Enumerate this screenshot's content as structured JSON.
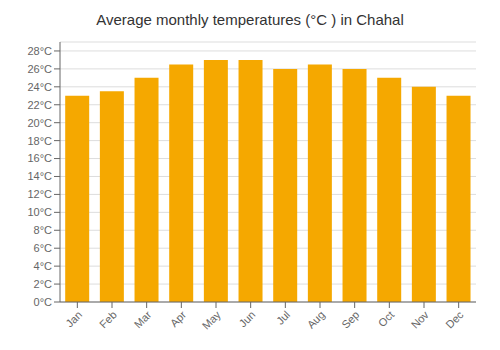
{
  "chart_data": {
    "type": "bar",
    "title": "Average monthly temperatures (°C ) in Chahal",
    "categories": [
      "Jan",
      "Feb",
      "Mar",
      "Apr",
      "May",
      "Jun",
      "Jul",
      "Aug",
      "Sep",
      "Oct",
      "Nov",
      "Dec"
    ],
    "values": [
      23,
      23.5,
      25,
      26.5,
      27,
      27,
      26,
      26.5,
      26,
      25,
      24,
      23
    ],
    "color": "#F5A800",
    "ylim": [
      0,
      29
    ],
    "yticks": [
      {
        "value": 0,
        "label": "0°C"
      },
      {
        "value": 2,
        "label": "2°C"
      },
      {
        "value": 4,
        "label": "4°C"
      },
      {
        "value": 6,
        "label": "6°C"
      },
      {
        "value": 8,
        "label": "8°C"
      },
      {
        "value": 10,
        "label": "10°C"
      },
      {
        "value": 12,
        "label": "12°C"
      },
      {
        "value": 14,
        "label": "14°C"
      },
      {
        "value": 16,
        "label": "16°C"
      },
      {
        "value": 18,
        "label": "18°C"
      },
      {
        "value": 20,
        "label": "20°C"
      },
      {
        "value": 22,
        "label": "22°C"
      },
      {
        "value": 24,
        "label": "24°C"
      },
      {
        "value": 26,
        "label": "26°C"
      },
      {
        "value": 28,
        "label": "28°C"
      }
    ],
    "grid": true
  }
}
